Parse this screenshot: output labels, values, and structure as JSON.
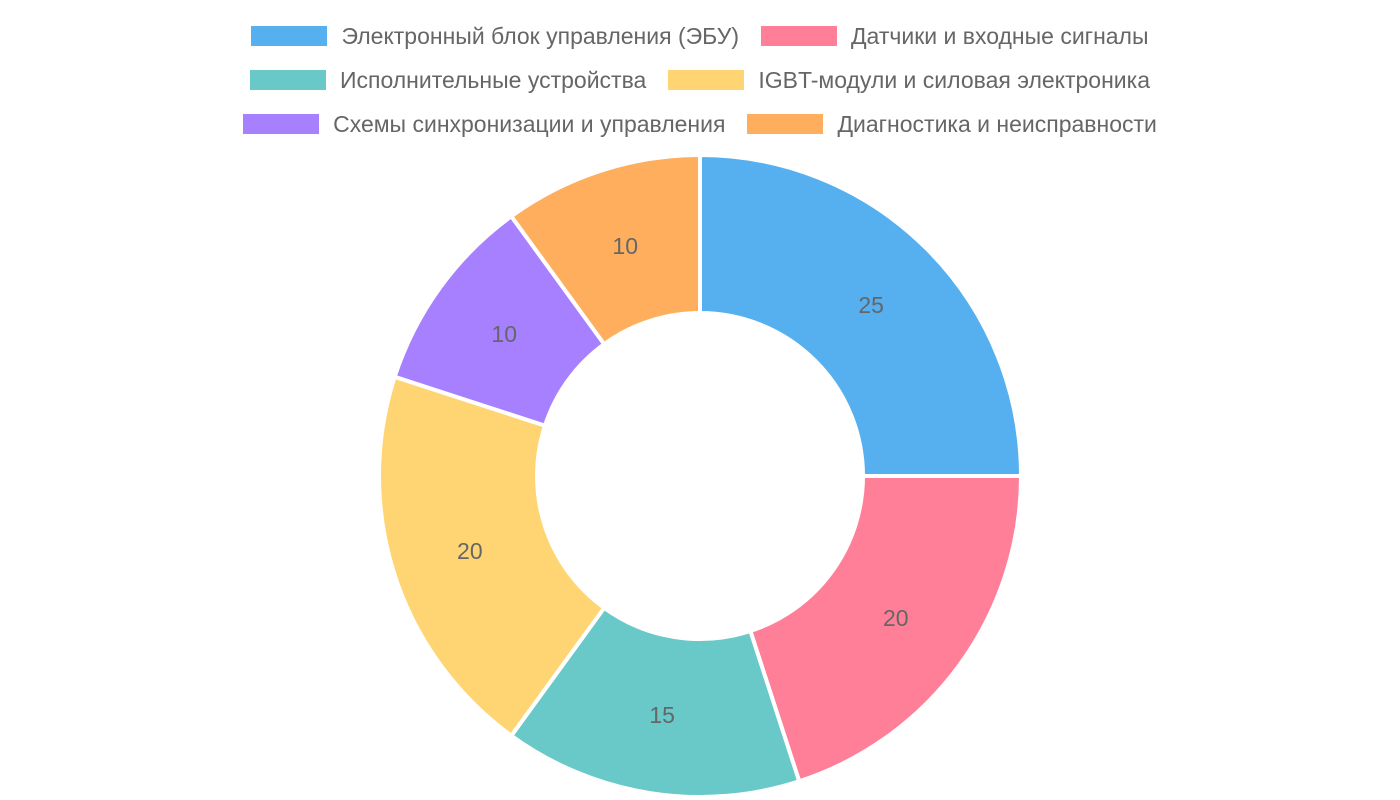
{
  "chart_data": {
    "type": "pie",
    "variant": "doughnut",
    "legend_position": "top",
    "categories": [
      "Электронный блок управления (ЭБУ)",
      "Датчики и входные сигналы",
      "Исполнительные устройства",
      "IGBT-модули и силовая электроника",
      "Схемы синхронизации и управления",
      "Диагностика и неисправности"
    ],
    "values": [
      25,
      20,
      15,
      20,
      10,
      10
    ],
    "colors": [
      "#56b0ef",
      "#ff7f98",
      "#69c9c8",
      "#ffd573",
      "#a680ff",
      "#ffae5d"
    ],
    "legend_rows": [
      [
        0,
        1
      ],
      [
        2,
        3
      ],
      [
        4,
        5
      ]
    ]
  }
}
